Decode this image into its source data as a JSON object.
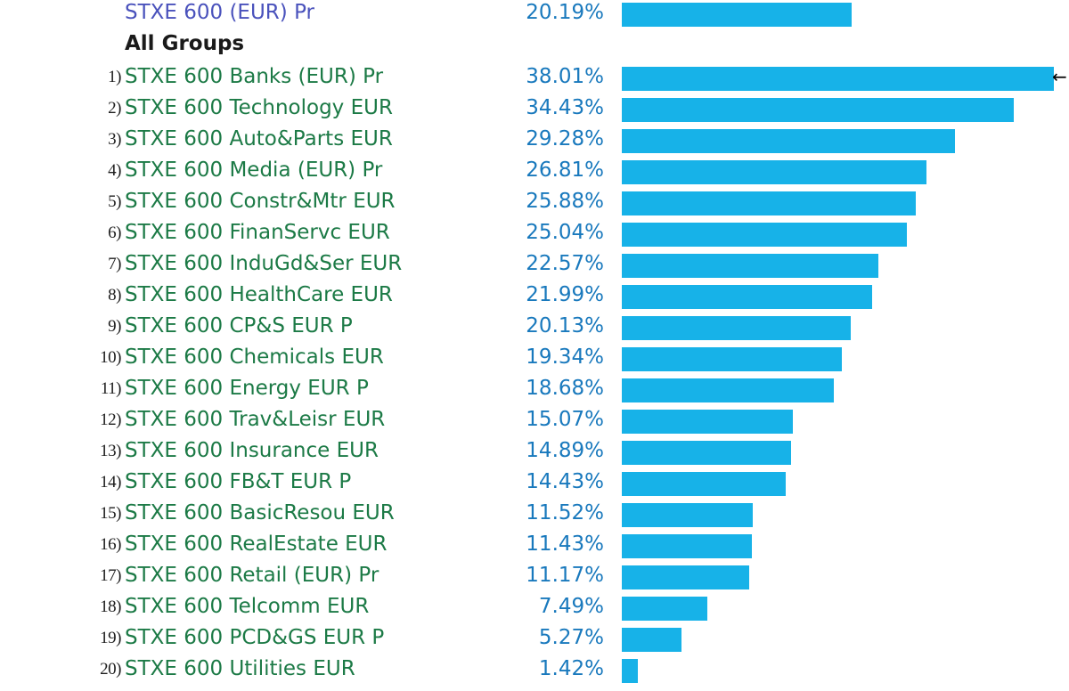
{
  "chart_data": {
    "type": "bar",
    "orientation": "horizontal",
    "benchmark": {
      "name": "STXE 600 (EUR) Pr",
      "value": 20.19,
      "label": "20.19%"
    },
    "group_label": "All Groups",
    "categories": [
      "STXE 600 Banks (EUR) Pr",
      "STXE 600 Technology EUR",
      "STXE 600 Auto&Parts EUR",
      "STXE 600 Media (EUR) Pr",
      "STXE 600 Constr&Mtr EUR",
      "STXE 600 FinanServc EUR",
      "STXE 600 InduGd&Ser EUR",
      "STXE 600 HealthCare EUR",
      "STXE 600 CP&S EUR P",
      "STXE 600 Chemicals EUR",
      "STXE 600 Energy EUR P",
      "STXE 600 Trav&Leisr EUR",
      "STXE 600 Insurance EUR",
      "STXE 600 FB&T EUR P",
      "STXE 600 BasicResou EUR",
      "STXE 600 RealEstate EUR",
      "STXE 600 Retail (EUR) Pr",
      "STXE 600 Telcomm EUR",
      "STXE 600 PCD&GS EUR P",
      "STXE 600 Utilities EUR"
    ],
    "ranks": [
      "1)",
      "2)",
      "3)",
      "4)",
      "5)",
      "6)",
      "7)",
      "8)",
      "9)",
      "10)",
      "11)",
      "12)",
      "13)",
      "14)",
      "15)",
      "16)",
      "17)",
      "18)",
      "19)",
      "20)"
    ],
    "values": [
      38.01,
      34.43,
      29.28,
      26.81,
      25.88,
      25.04,
      22.57,
      21.99,
      20.13,
      19.34,
      18.68,
      15.07,
      14.89,
      14.43,
      11.52,
      11.43,
      11.17,
      7.49,
      5.27,
      1.42
    ],
    "value_labels": [
      "38.01%",
      "34.43%",
      "29.28%",
      "26.81%",
      "25.88%",
      "25.04%",
      "22.57%",
      "21.99%",
      "20.13%",
      "19.34%",
      "18.68%",
      "15.07%",
      "14.89%",
      "14.43%",
      "11.52%",
      "11.43%",
      "11.17%",
      "7.49%",
      "5.27%",
      "1.42%"
    ],
    "xlim": [
      0,
      38.3
    ],
    "marker_glyph": "←",
    "colors": {
      "bar": "#17b2e8",
      "name": "#1c7a46",
      "value": "#1979bd",
      "benchmark_name": "#4a52bc"
    }
  }
}
